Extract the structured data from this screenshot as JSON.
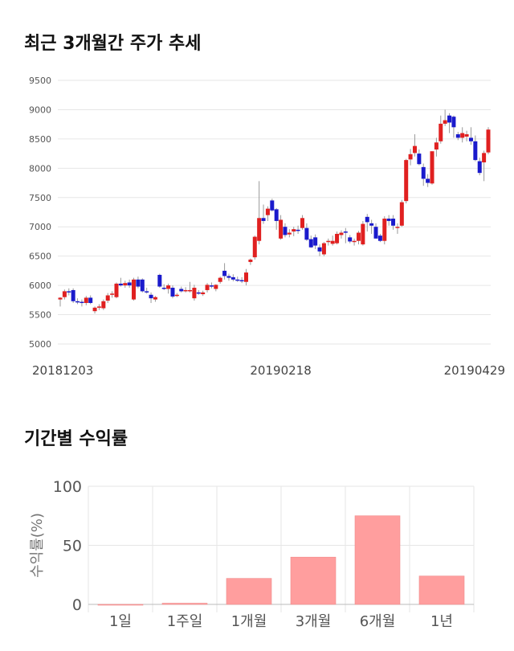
{
  "sections": {
    "price_title": "최근 3개월간 주가 추세",
    "return_title": "기간별 수익률"
  },
  "chart_data": [
    {
      "type": "candlestick",
      "ylim": [
        5000,
        9500
      ],
      "yticks": [
        5000,
        5500,
        6000,
        6500,
        7000,
        7500,
        8000,
        8500,
        9000,
        9500
      ],
      "date_ticks": [
        {
          "label": "20181203",
          "index": 0
        },
        {
          "label": "20190218",
          "index": 51
        },
        {
          "label": "20190429",
          "index": 99
        }
      ],
      "colors": {
        "up": "#e02020",
        "down": "#1a1acc",
        "wick": "#999999"
      },
      "grid": true,
      "ohlc": [
        [
          5760,
          5800,
          5640,
          5790
        ],
        [
          5800,
          5930,
          5760,
          5900
        ],
        [
          5900,
          5950,
          5830,
          5880
        ],
        [
          5920,
          5950,
          5700,
          5730
        ],
        [
          5730,
          5780,
          5680,
          5720
        ],
        [
          5720,
          5760,
          5640,
          5700
        ],
        [
          5700,
          5820,
          5660,
          5790
        ],
        [
          5790,
          5830,
          5680,
          5700
        ],
        [
          5560,
          5640,
          5520,
          5620
        ],
        [
          5620,
          5680,
          5580,
          5640
        ],
        [
          5610,
          5760,
          5580,
          5730
        ],
        [
          5740,
          5870,
          5700,
          5830
        ],
        [
          5840,
          5900,
          5790,
          5860
        ],
        [
          5800,
          6050,
          5780,
          6030
        ],
        [
          6030,
          6130,
          5980,
          6000
        ],
        [
          6000,
          6080,
          5960,
          6040
        ],
        [
          6050,
          6100,
          5960,
          6000
        ],
        [
          5760,
          6130,
          5740,
          6100
        ],
        [
          6100,
          6150,
          5950,
          5980
        ],
        [
          6100,
          6120,
          5880,
          5900
        ],
        [
          5900,
          5960,
          5860,
          5880
        ],
        [
          5840,
          5880,
          5700,
          5780
        ],
        [
          5760,
          5820,
          5720,
          5800
        ],
        [
          6180,
          6200,
          5960,
          5980
        ],
        [
          5960,
          6020,
          5920,
          5940
        ],
        [
          5940,
          6030,
          5860,
          6000
        ],
        [
          5960,
          6000,
          5780,
          5810
        ],
        [
          5820,
          5870,
          5800,
          5840
        ],
        [
          5940,
          5980,
          5880,
          5900
        ],
        [
          5900,
          5970,
          5880,
          5920
        ],
        [
          5900,
          6060,
          5880,
          5920
        ],
        [
          5780,
          6010,
          5740,
          5960
        ],
        [
          5880,
          5920,
          5840,
          5860
        ],
        [
          5850,
          5910,
          5820,
          5880
        ],
        [
          5920,
          6040,
          5880,
          6010
        ],
        [
          6000,
          6050,
          5950,
          5980
        ],
        [
          5940,
          6020,
          5900,
          6010
        ],
        [
          6060,
          6150,
          6030,
          6130
        ],
        [
          6250,
          6380,
          6100,
          6160
        ],
        [
          6160,
          6200,
          6080,
          6130
        ],
        [
          6140,
          6190,
          6070,
          6100
        ],
        [
          6100,
          6150,
          6060,
          6080
        ],
        [
          6090,
          6140,
          6040,
          6070
        ],
        [
          6060,
          6280,
          6000,
          6220
        ],
        [
          6400,
          6460,
          6350,
          6440
        ],
        [
          6480,
          6850,
          6440,
          6830
        ],
        [
          6760,
          7780,
          6700,
          7150
        ],
        [
          7150,
          7380,
          7050,
          7100
        ],
        [
          7200,
          7350,
          7100,
          7310
        ],
        [
          7450,
          7480,
          7260,
          7280
        ],
        [
          7300,
          7320,
          6950,
          7100
        ],
        [
          6800,
          7200,
          6780,
          7120
        ],
        [
          7000,
          7060,
          6820,
          6860
        ],
        [
          6870,
          6960,
          6820,
          6900
        ],
        [
          6920,
          7000,
          6840,
          6960
        ],
        [
          6950,
          7020,
          6880,
          6930
        ],
        [
          6980,
          7200,
          6950,
          7150
        ],
        [
          6980,
          7060,
          6760,
          6780
        ],
        [
          6790,
          6850,
          6640,
          6650
        ],
        [
          6820,
          6870,
          6620,
          6680
        ],
        [
          6650,
          6700,
          6500,
          6580
        ],
        [
          6530,
          6740,
          6500,
          6720
        ],
        [
          6740,
          6800,
          6680,
          6760
        ],
        [
          6710,
          6850,
          6680,
          6760
        ],
        [
          6720,
          6920,
          6700,
          6880
        ],
        [
          6860,
          6940,
          6800,
          6900
        ],
        [
          6920,
          6980,
          6720,
          6900
        ],
        [
          6820,
          6860,
          6720,
          6750
        ],
        [
          6760,
          6800,
          6680,
          6760
        ],
        [
          6760,
          6930,
          6700,
          6900
        ],
        [
          6700,
          7100,
          6680,
          7050
        ],
        [
          7170,
          7220,
          6920,
          7080
        ],
        [
          7060,
          7120,
          6880,
          7020
        ],
        [
          7000,
          7060,
          6800,
          6800
        ],
        [
          6850,
          6880,
          6740,
          6760
        ],
        [
          6760,
          7180,
          6700,
          7140
        ],
        [
          7140,
          7200,
          7020,
          7100
        ],
        [
          7140,
          7200,
          6950,
          7020
        ],
        [
          7000,
          7060,
          6880,
          7000
        ],
        [
          7020,
          7460,
          7000,
          7420
        ],
        [
          7440,
          8160,
          7400,
          8140
        ],
        [
          8150,
          8330,
          8050,
          8240
        ],
        [
          8260,
          8580,
          8200,
          8380
        ],
        [
          8250,
          8320,
          8050,
          8070
        ],
        [
          8020,
          8080,
          7700,
          7820
        ],
        [
          7820,
          7900,
          7680,
          7750
        ],
        [
          7740,
          8270,
          7720,
          8290
        ],
        [
          8320,
          8520,
          8200,
          8440
        ],
        [
          8460,
          8900,
          8420,
          8760
        ],
        [
          8760,
          9000,
          8720,
          8820
        ],
        [
          8900,
          8940,
          8600,
          8780
        ],
        [
          8880,
          8900,
          8520,
          8700
        ],
        [
          8580,
          8620,
          8480,
          8520
        ],
        [
          8520,
          8700,
          8440,
          8600
        ],
        [
          8540,
          8640,
          8460,
          8580
        ],
        [
          8520,
          8700,
          8400,
          8460
        ],
        [
          8460,
          8560,
          8120,
          8140
        ],
        [
          8120,
          8180,
          7880,
          7920
        ],
        [
          8100,
          8300,
          7780,
          8260
        ],
        [
          8270,
          8700,
          8240,
          8660
        ]
      ]
    },
    {
      "type": "bar",
      "categories": [
        "1일",
        "1주일",
        "1개월",
        "3개월",
        "6개월",
        "1년"
      ],
      "values": [
        0,
        1,
        22,
        40,
        75,
        24
      ],
      "ylim": [
        0,
        100
      ],
      "yticks": [
        0,
        50,
        100
      ],
      "ylabel": "수익률(%)",
      "color": "#ff9e9e",
      "grid": true
    }
  ]
}
